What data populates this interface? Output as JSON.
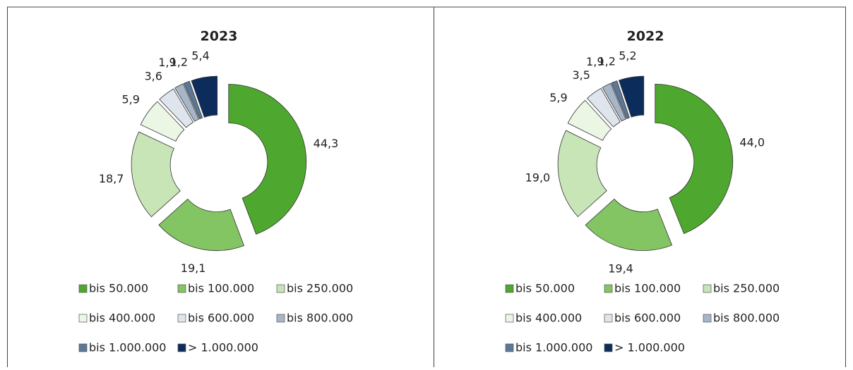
{
  "chart_data": [
    {
      "type": "donut",
      "title": "2023",
      "categories": [
        "bis 50.000",
        "bis 100.000",
        "bis 250.000",
        "bis 400.000",
        "bis 600.000",
        "bis 800.000",
        "bis 1.000.000",
        "> 1.000.000"
      ],
      "values": [
        44.3,
        19.1,
        18.7,
        5.9,
        3.6,
        1.9,
        1.2,
        5.4
      ],
      "value_labels": [
        "44,3",
        "19,1",
        "18,7",
        "5,9",
        "3,6",
        "1,9",
        "1,2",
        "5,4"
      ],
      "colors": [
        "#4ea72e",
        "#84c563",
        "#c7e5b7",
        "#ebf6e5",
        "#dfe5ec",
        "#a7b6c7",
        "#5b7898",
        "#0c2d5b"
      ]
    },
    {
      "type": "donut",
      "title": "2022",
      "categories": [
        "bis 50.000",
        "bis 100.000",
        "bis 250.000",
        "bis 400.000",
        "bis 600.000",
        "bis 800.000",
        "bis 1.000.000",
        "> 1.000.000"
      ],
      "values": [
        44.0,
        19.4,
        19.0,
        5.9,
        3.5,
        1.9,
        1.2,
        5.2
      ],
      "value_labels": [
        "44,0",
        "19,4",
        "19,0",
        "5,9",
        "3,5",
        "1,9",
        "1,2",
        "5,2"
      ],
      "colors": [
        "#4ea72e",
        "#84c563",
        "#c7e5b7",
        "#ebf6e5",
        "#dfe5ec",
        "#a7b6c7",
        "#5b7898",
        "#0c2d5b"
      ]
    }
  ]
}
